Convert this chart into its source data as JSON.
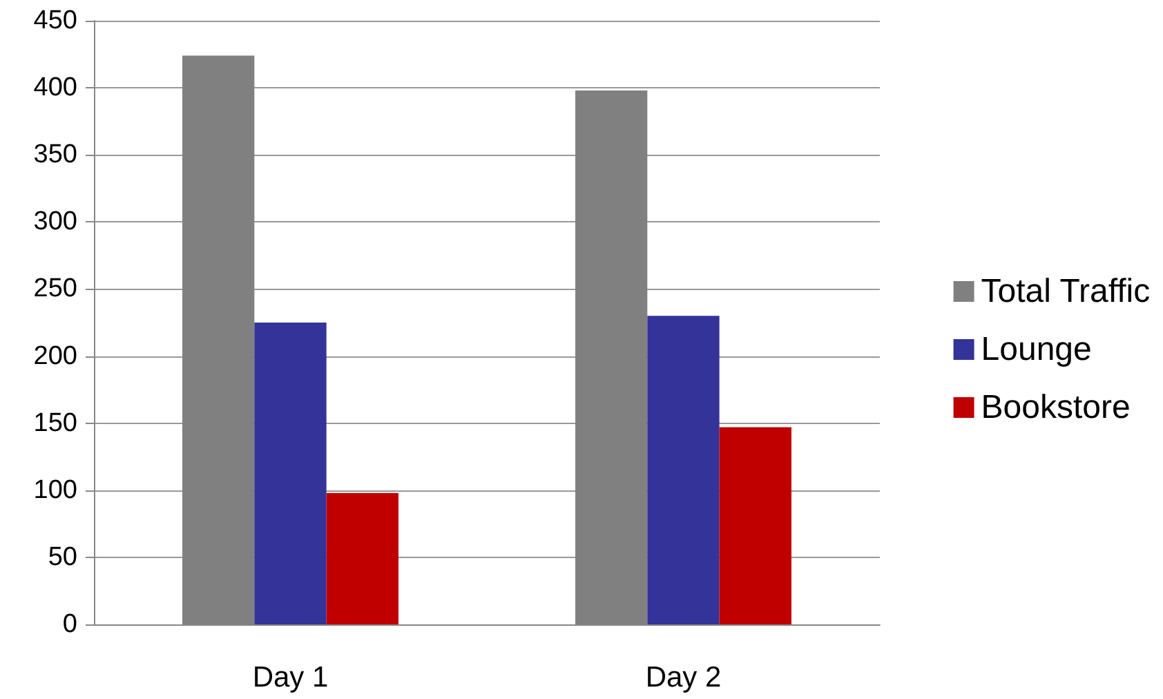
{
  "chart_data": {
    "type": "bar",
    "categories": [
      "Day 1",
      "Day 2"
    ],
    "series": [
      {
        "name": "Total Traffic",
        "color": "#808080",
        "values": [
          424,
          398
        ]
      },
      {
        "name": "Lounge",
        "color": "#333399",
        "values": [
          225,
          230
        ]
      },
      {
        "name": "Bookstore",
        "color": "#c00000",
        "values": [
          98,
          147
        ]
      }
    ],
    "ylim": [
      0,
      450
    ],
    "yticks": [
      0,
      50,
      100,
      150,
      200,
      250,
      300,
      350,
      400,
      450
    ],
    "grid": "y",
    "legend": "right"
  }
}
